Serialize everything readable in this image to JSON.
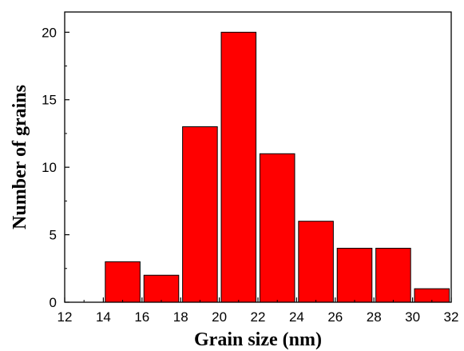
{
  "chart_data": {
    "type": "bar",
    "xlabel": "Grain size (nm)",
    "ylabel": "Number of grains",
    "xlim": [
      12,
      32
    ],
    "ylim": [
      0,
      21.5
    ],
    "x_ticks": [
      "12",
      "14",
      "16",
      "18",
      "20",
      "22",
      "24",
      "26",
      "28",
      "30",
      "32"
    ],
    "y_ticks": [
      "0",
      "5",
      "10",
      "15",
      "20"
    ],
    "bin_width": 2,
    "bins": [
      {
        "center": 15,
        "value": 3
      },
      {
        "center": 17,
        "value": 2
      },
      {
        "center": 19,
        "value": 13
      },
      {
        "center": 21,
        "value": 20
      },
      {
        "center": 23,
        "value": 11
      },
      {
        "center": 25,
        "value": 6
      },
      {
        "center": 27,
        "value": 4
      },
      {
        "center": 29,
        "value": 4
      },
      {
        "center": 31,
        "value": 1
      }
    ],
    "bar_color": "#ff0000",
    "edge_color": "#000000",
    "grid": false
  }
}
